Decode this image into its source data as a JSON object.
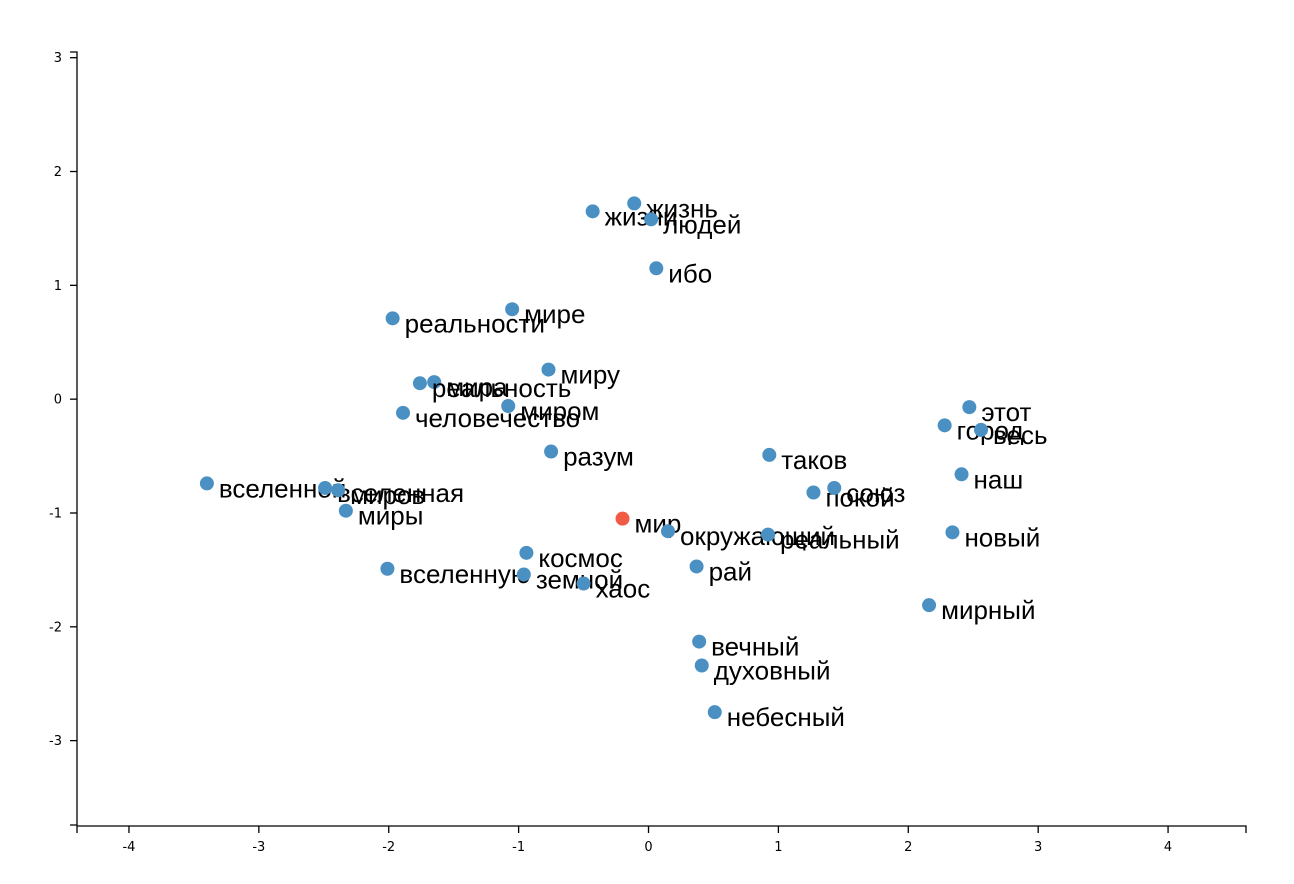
{
  "chart_data": {
    "type": "scatter",
    "title": "",
    "xlabel": "",
    "ylabel": "",
    "xlim": [
      -4.4,
      4.6
    ],
    "ylim": [
      -3.75,
      3.05
    ],
    "x_ticks": [
      -4,
      -3,
      -2,
      -1,
      0,
      1,
      2,
      3,
      4
    ],
    "y_ticks": [
      3,
      2,
      1,
      0,
      -1,
      -2,
      -3
    ],
    "grid": false,
    "colors": {
      "default": "#4a90c2",
      "highlight": "#f15a45"
    },
    "points": [
      {
        "label": "жизнь",
        "x": -0.11,
        "y": 1.72
      },
      {
        "label": "жизни",
        "x": -0.43,
        "y": 1.65
      },
      {
        "label": "людей",
        "x": 0.02,
        "y": 1.58
      },
      {
        "label": "ибо",
        "x": 0.06,
        "y": 1.15
      },
      {
        "label": "мире",
        "x": -1.05,
        "y": 0.79
      },
      {
        "label": "реальности",
        "x": -1.97,
        "y": 0.71
      },
      {
        "label": "миру",
        "x": -0.77,
        "y": 0.26
      },
      {
        "label": "мира",
        "x": -1.65,
        "y": 0.15
      },
      {
        "label": "реальность",
        "x": -1.76,
        "y": 0.14
      },
      {
        "label": "миром",
        "x": -1.08,
        "y": -0.06
      },
      {
        "label": "человечество",
        "x": -1.89,
        "y": -0.12
      },
      {
        "label": "разум",
        "x": -0.75,
        "y": -0.46
      },
      {
        "label": "вселенной",
        "x": -3.4,
        "y": -0.74
      },
      {
        "label": "вселенная",
        "x": -2.49,
        "y": -0.78
      },
      {
        "label": "миров",
        "x": -2.39,
        "y": -0.8
      },
      {
        "label": "миры",
        "x": -2.33,
        "y": -0.98
      },
      {
        "label": "мир",
        "x": -0.2,
        "y": -1.05,
        "highlight": true
      },
      {
        "label": "космос",
        "x": -0.94,
        "y": -1.35
      },
      {
        "label": "вселенную",
        "x": -2.01,
        "y": -1.49
      },
      {
        "label": "земной",
        "x": -0.96,
        "y": -1.54
      },
      {
        "label": "хаос",
        "x": -0.5,
        "y": -1.62
      },
      {
        "label": "окружающий",
        "x": 0.15,
        "y": -1.16
      },
      {
        "label": "рай",
        "x": 0.37,
        "y": -1.47
      },
      {
        "label": "реальный",
        "x": 0.92,
        "y": -1.19
      },
      {
        "label": "таков",
        "x": 0.93,
        "y": -0.49
      },
      {
        "label": "покой",
        "x": 1.27,
        "y": -0.82
      },
      {
        "label": "союз",
        "x": 1.43,
        "y": -0.78
      },
      {
        "label": "этот",
        "x": 2.47,
        "y": -0.07
      },
      {
        "label": "город",
        "x": 2.28,
        "y": -0.23
      },
      {
        "label": "весь",
        "x": 2.56,
        "y": -0.27
      },
      {
        "label": "наш",
        "x": 2.41,
        "y": -0.66
      },
      {
        "label": "новый",
        "x": 2.34,
        "y": -1.17
      },
      {
        "label": "мирный",
        "x": 2.16,
        "y": -1.81
      },
      {
        "label": "вечный",
        "x": 0.39,
        "y": -2.13
      },
      {
        "label": "духовный",
        "x": 0.41,
        "y": -2.34
      },
      {
        "label": "небесный",
        "x": 0.51,
        "y": -2.75
      }
    ]
  }
}
